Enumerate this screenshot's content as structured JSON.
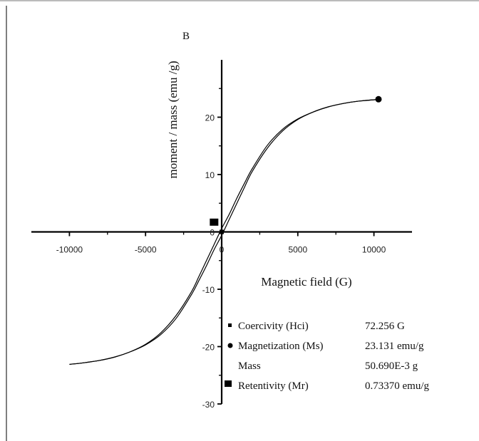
{
  "chart_data": {
    "type": "line",
    "panel_label": "B",
    "title": "",
    "xlabel": "Magnetic field (G)",
    "ylabel": "moment / mass (emu /g)",
    "xlim": [
      -12500,
      12500
    ],
    "ylim": [
      -30,
      30
    ],
    "x_ticks": [
      -10000,
      -5000,
      0,
      5000,
      10000
    ],
    "x_tick_labels": [
      "-10000",
      "-5000",
      "0",
      "5000",
      "10000"
    ],
    "y_ticks": [
      -30,
      -20,
      -10,
      0,
      10,
      20
    ],
    "y_tick_labels": [
      "-30",
      "-20",
      "-10",
      "0",
      "10",
      "20"
    ],
    "grid": false,
    "series": [
      {
        "branch": "descending",
        "color": "#000000",
        "x": [
          10300,
          9000,
          8000,
          7000,
          6000,
          5000,
          4000,
          3000,
          2000,
          1500,
          1000,
          500,
          0,
          -500,
          -1000,
          -1500,
          -2000,
          -3000,
          -4000,
          -5000,
          -6000,
          -7000,
          -8000,
          -9000,
          -10000
        ],
        "y": [
          23.1,
          22.8,
          22.4,
          21.8,
          20.9,
          19.7,
          17.9,
          15.1,
          11.0,
          8.5,
          5.9,
          3.1,
          0.6,
          -2.2,
          -5.0,
          -7.8,
          -10.5,
          -14.6,
          -17.6,
          -19.6,
          -20.9,
          -21.8,
          -22.4,
          -22.8,
          -23.1
        ]
      },
      {
        "branch": "ascending",
        "color": "#000000",
        "x": [
          -10000,
          -9000,
          -8000,
          -7000,
          -6000,
          -5000,
          -4000,
          -3000,
          -2000,
          -1500,
          -1000,
          -500,
          0,
          500,
          1000,
          1500,
          2000,
          3000,
          4000,
          5000,
          6000,
          7000,
          8000,
          9000,
          10300
        ],
        "y": [
          -23.1,
          -22.8,
          -22.4,
          -21.8,
          -20.9,
          -19.7,
          -17.9,
          -15.1,
          -11.0,
          -8.5,
          -5.9,
          -3.1,
          -0.6,
          2.2,
          5.0,
          7.8,
          10.5,
          14.6,
          17.6,
          19.6,
          20.9,
          21.8,
          22.4,
          22.8,
          23.1
        ]
      }
    ],
    "markers": [
      {
        "name": "Magnetization (Ms)",
        "shape": "circle",
        "x": 10300,
        "y": 23.131
      },
      {
        "name": "Retentivity (Mr)",
        "shape": "square",
        "x": -500,
        "y": 1.7
      },
      {
        "name": "Coercivity (Hci)",
        "shape": "small-square",
        "x": 0,
        "y": 0
      }
    ],
    "legend_placement": "bottom-right",
    "legend": [
      {
        "symbol": "small-square",
        "name": "Coercivity (Hci)",
        "value": "72.256 G"
      },
      {
        "symbol": "circle",
        "name": "Magnetization (Ms)",
        "value": "23.131 emu/g"
      },
      {
        "symbol": "none",
        "name": "Mass",
        "value": "50.690E-3 g"
      },
      {
        "symbol": "square",
        "name": "Retentivity (Mr)",
        "value": "0.73370 emu/g"
      }
    ]
  }
}
